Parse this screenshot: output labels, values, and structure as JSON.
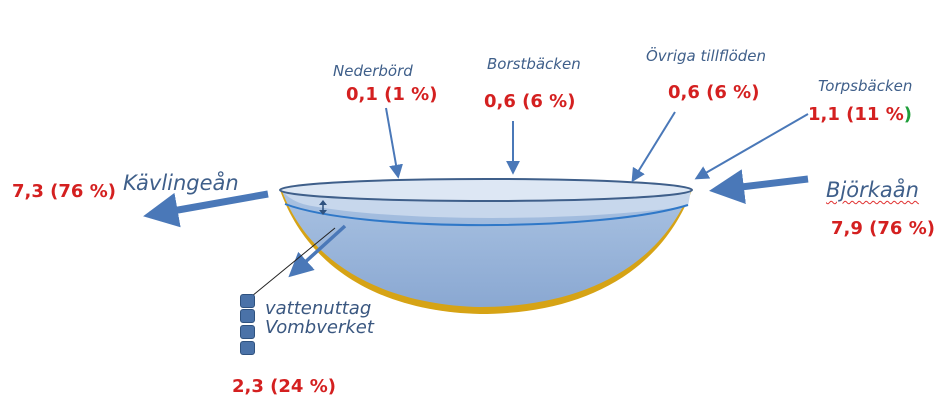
{
  "flows": {
    "nederbord": {
      "name": "Nederbörd",
      "value": "0,1 (1 %)"
    },
    "borstbacken": {
      "name": "Borstbäcken",
      "value": "0,6 (6 %)"
    },
    "ovriga": {
      "name": "Övriga tillflöden",
      "value": "0,6 (6 %)"
    },
    "torpsbacken": {
      "name": "Torpsbäcken",
      "value_main": "1,1 (11 %",
      "value_close": ")"
    },
    "bjorkaan": {
      "name": "Björkaån",
      "value": "7,9 (76 %)"
    },
    "kavlingean": {
      "name": "Kävlingeån",
      "value": "7,3 (76 %)"
    },
    "vattenuttag": {
      "line1": "vattenuttag",
      "line2": "Vombverket",
      "value": "2,3 (24 %)"
    }
  },
  "colors": {
    "arrow": "#4a78b8",
    "water": "#95b3d7",
    "lake_bed": "#d6a315",
    "value_text": "#d42020",
    "name_text": "#3f5f8a",
    "accent_green": "#1f9e3a"
  },
  "icons": [
    "flow-arrow",
    "level-change-double-arrow",
    "pump-square"
  ]
}
